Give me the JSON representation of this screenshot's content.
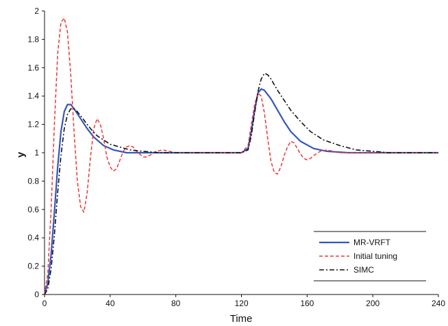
{
  "chart_data": {
    "type": "line",
    "xlabel": "Time",
    "ylabel": "y",
    "xlim": [
      0,
      240
    ],
    "ylim": [
      0,
      2
    ],
    "xticks": [
      0,
      40,
      80,
      120,
      160,
      200,
      240
    ],
    "yticks": [
      0,
      0.2,
      0.4,
      0.6,
      0.8,
      1,
      1.2,
      1.4,
      1.6,
      1.8,
      2
    ],
    "ytick_labels": [
      "0",
      "0.2",
      "0.4",
      "0.6",
      "0.8",
      "1",
      "1.2",
      "1.4",
      "1.6",
      "1.8",
      "2"
    ],
    "grid": false,
    "legend_position": "bottom-right",
    "series": [
      {
        "name": "MR-VRFT",
        "color": "#3355bb",
        "style": "solid",
        "x": [
          0,
          2,
          4,
          6,
          8,
          10,
          12,
          14,
          16,
          18,
          22,
          26,
          30,
          36,
          42,
          50,
          60,
          80,
          100,
          120,
          124,
          126,
          128,
          130,
          132,
          134,
          138,
          142,
          146,
          150,
          156,
          164,
          172,
          185,
          200,
          220,
          240
        ],
        "y": [
          0,
          0.08,
          0.28,
          0.58,
          0.9,
          1.15,
          1.29,
          1.34,
          1.34,
          1.31,
          1.24,
          1.17,
          1.11,
          1.05,
          1.02,
          1.0,
          1.0,
          1.0,
          1.0,
          1.0,
          1.03,
          1.15,
          1.3,
          1.42,
          1.45,
          1.44,
          1.38,
          1.3,
          1.22,
          1.15,
          1.08,
          1.03,
          1.01,
          1.0,
          1.0,
          1.0,
          1.0
        ]
      },
      {
        "name": "Initial tuning",
        "color": "#ee3333",
        "style": "dashed",
        "x": [
          0,
          2,
          4,
          6,
          8,
          10,
          12,
          14,
          16,
          18,
          20,
          22,
          24,
          26,
          28,
          30,
          32,
          34,
          36,
          38,
          40,
          42,
          44,
          46,
          48,
          50,
          52,
          54,
          56,
          58,
          60,
          62,
          64,
          68,
          72,
          76,
          80,
          84,
          90,
          100,
          110,
          120,
          124,
          126,
          128,
          130,
          132,
          134,
          136,
          138,
          140,
          142,
          144,
          146,
          148,
          150,
          152,
          154,
          156,
          158,
          160,
          162,
          164,
          168,
          172,
          176,
          180,
          190,
          200,
          220,
          240
        ],
        "y": [
          0,
          0.15,
          0.6,
          1.2,
          1.7,
          1.92,
          1.95,
          1.85,
          1.55,
          1.15,
          0.8,
          0.62,
          0.58,
          0.72,
          0.97,
          1.17,
          1.24,
          1.2,
          1.1,
          0.97,
          0.9,
          0.87,
          0.89,
          0.95,
          1.01,
          1.04,
          1.05,
          1.04,
          1.01,
          0.99,
          0.97,
          0.97,
          0.98,
          1.01,
          1.02,
          1.01,
          1.0,
          1.0,
          1.0,
          1.0,
          1.0,
          1.0,
          1.05,
          1.2,
          1.34,
          1.42,
          1.4,
          1.28,
          1.1,
          0.94,
          0.86,
          0.85,
          0.9,
          0.98,
          1.04,
          1.08,
          1.07,
          1.03,
          0.99,
          0.96,
          0.95,
          0.96,
          0.98,
          1.01,
          1.02,
          1.01,
          1.0,
          1.0,
          1.0,
          1.0,
          1.0
        ]
      },
      {
        "name": "SIMC",
        "color": "#111111",
        "style": "dashdot",
        "x": [
          0,
          2,
          4,
          6,
          8,
          10,
          12,
          14,
          16,
          18,
          20,
          24,
          28,
          32,
          36,
          40,
          46,
          52,
          60,
          70,
          80,
          100,
          120,
          124,
          126,
          128,
          130,
          132,
          134,
          136,
          138,
          142,
          146,
          150,
          156,
          162,
          170,
          180,
          190,
          200,
          210,
          220,
          240
        ],
        "y": [
          0,
          0.04,
          0.18,
          0.42,
          0.72,
          0.98,
          1.17,
          1.27,
          1.31,
          1.31,
          1.29,
          1.23,
          1.17,
          1.12,
          1.09,
          1.06,
          1.04,
          1.02,
          1.01,
          1.0,
          1.0,
          1.0,
          1.0,
          1.02,
          1.12,
          1.28,
          1.43,
          1.52,
          1.56,
          1.55,
          1.52,
          1.44,
          1.37,
          1.3,
          1.22,
          1.15,
          1.09,
          1.05,
          1.02,
          1.01,
          1.0,
          1.0,
          1.0
        ]
      }
    ]
  }
}
